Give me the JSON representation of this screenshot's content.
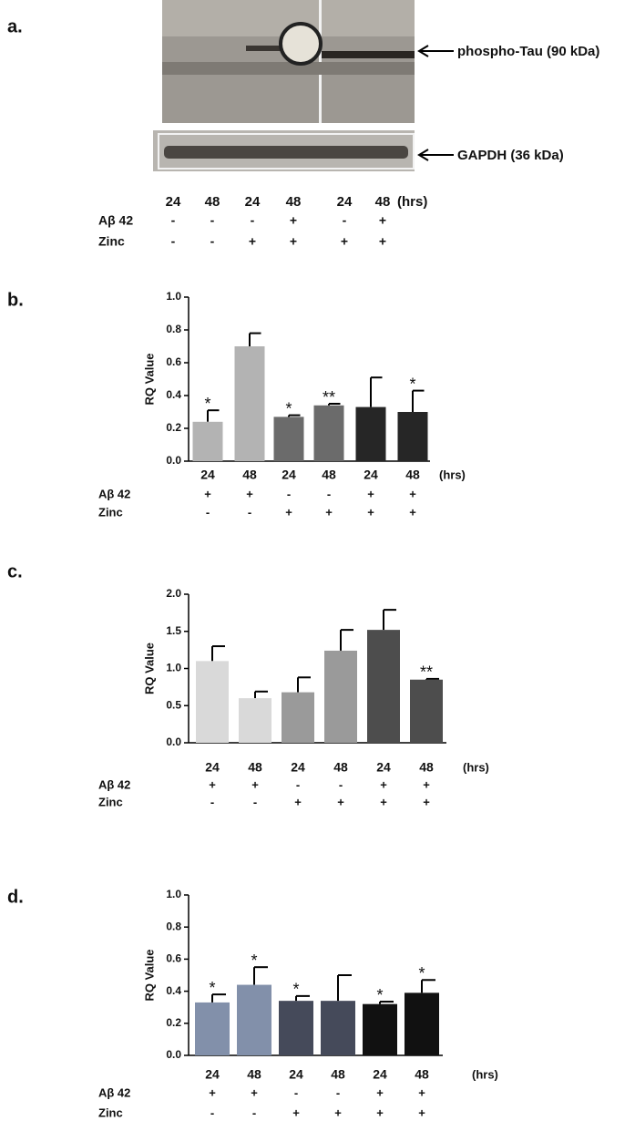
{
  "blot": {
    "panel_label": "a.",
    "band_labels": [
      "phospho-Tau (90 kDa)",
      "GAPDH (36 kDa)"
    ],
    "lanes": [
      "24",
      "48",
      "24",
      "48",
      "24",
      "48"
    ],
    "unit": "(hrs)",
    "treatments": [
      {
        "name": "Aβ 42",
        "values": [
          "-",
          "-",
          "-",
          "+",
          "-",
          "+"
        ]
      },
      {
        "name": "Zinc",
        "values": [
          "-",
          "-",
          "+",
          "+",
          "+",
          "+"
        ]
      }
    ]
  },
  "chart_data": [
    {
      "type": "bar",
      "panel_label": "b.",
      "y_label": "RQ Value",
      "categories": [
        "24",
        "48",
        "24",
        "48",
        "24",
        "48"
      ],
      "unit": "(hrs)",
      "values": [
        0.24,
        0.7,
        0.27,
        0.34,
        0.33,
        0.3
      ],
      "errors": [
        0.07,
        0.08,
        0.01,
        0.01,
        0.18,
        0.13
      ],
      "colors": [
        "#b3b3b3",
        "#b3b3b3",
        "#6b6b6b",
        "#6b6b6b",
        "#262626",
        "#262626"
      ],
      "annotations": [
        "*",
        null,
        "*",
        "**",
        null,
        "*"
      ],
      "treatments": [
        {
          "name": "Aβ 42",
          "values": [
            "+",
            "+",
            "-",
            "-",
            "+",
            "+"
          ]
        },
        {
          "name": "Zinc",
          "values": [
            "-",
            "-",
            "+",
            "+",
            "+",
            "+"
          ]
        }
      ],
      "ylim": [
        0,
        1
      ],
      "yticks": [
        {
          "value": 0,
          "label": "0.0"
        },
        0.2,
        0.4,
        0.6,
        0.8,
        {
          "value": 1,
          "label": "1.0"
        }
      ]
    },
    {
      "type": "bar",
      "panel_label": "c.",
      "y_label": "RQ Value",
      "categories": [
        "24",
        "48",
        "24",
        "48",
        "24",
        "48"
      ],
      "unit": "(hrs)",
      "values": [
        1.1,
        0.6,
        0.68,
        1.24,
        1.52,
        0.85
      ],
      "errors": [
        0.2,
        0.09,
        0.2,
        0.28,
        0.27,
        0.01
      ],
      "colors": [
        "#d9d9d9",
        "#d9d9d9",
        "#9a9a9a",
        "#9a9a9a",
        "#4d4d4d",
        "#4d4d4d"
      ],
      "annotations": [
        null,
        null,
        null,
        null,
        null,
        "**"
      ],
      "treatments": [
        {
          "name": "Aβ 42",
          "values": [
            "+",
            "+",
            "-",
            "-",
            "+",
            "+"
          ]
        },
        {
          "name": "Zinc",
          "values": [
            "-",
            "-",
            "+",
            "+",
            "+",
            "+"
          ]
        }
      ],
      "ylim": [
        0,
        2
      ],
      "yticks": [
        {
          "value": 0,
          "label": "0.0"
        },
        0.5,
        {
          "value": 1,
          "label": "1.0"
        },
        1.5,
        {
          "value": 2,
          "label": "2.0"
        }
      ]
    },
    {
      "type": "bar",
      "panel_label": "d.",
      "y_label": "RQ Value",
      "categories": [
        "24",
        "48",
        "24",
        "48",
        "24",
        "48"
      ],
      "unit": "(hrs)",
      "values": [
        0.33,
        0.44,
        0.34,
        0.34,
        0.32,
        0.39
      ],
      "errors": [
        0.05,
        0.11,
        0.03,
        0.16,
        0.015,
        0.08
      ],
      "colors": [
        "#8290aa",
        "#8290aa",
        "#454a5a",
        "#454a5a",
        "#111111",
        "#111111"
      ],
      "annotations": [
        "*",
        "*",
        "*",
        null,
        "*",
        "*"
      ],
      "treatments": [
        {
          "name": "Aβ 42",
          "values": [
            "+",
            "+",
            "-",
            "-",
            "+",
            "+"
          ]
        },
        {
          "name": "Zinc",
          "values": [
            "-",
            "-",
            "+",
            "+",
            "+",
            "+"
          ]
        }
      ],
      "ylim": [
        0,
        1
      ],
      "yticks": [
        {
          "value": 0,
          "label": "0.0"
        },
        0.2,
        0.4,
        0.6,
        0.8,
        {
          "value": 1,
          "label": "1.0"
        }
      ]
    }
  ]
}
